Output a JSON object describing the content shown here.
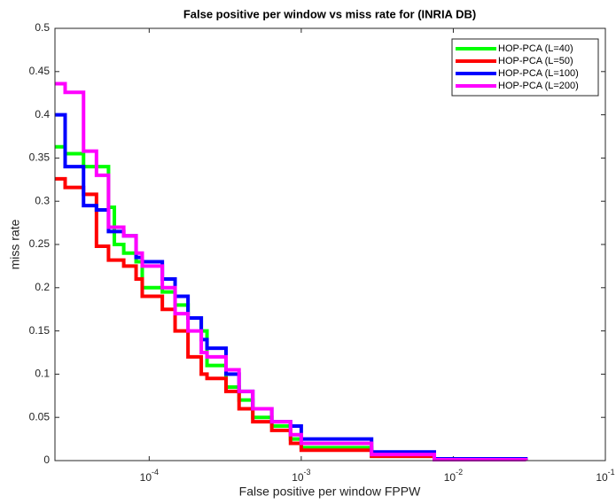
{
  "chart_data": {
    "type": "line",
    "title": "False positive per window vs miss rate for (INRIA DB)",
    "x_label": "False positive per window FPPW",
    "y_label": "miss rate",
    "x_scale": "log",
    "line_style": "step",
    "legend_position": "upper right",
    "x": [
      2.4e-05,
      2.8e-05,
      3.7e-05,
      4.5e-05,
      5.4e-05,
      5.9e-05,
      6.8e-05,
      8.2e-05,
      9e-05,
      0.000122,
      0.000148,
      0.00018,
      0.00022,
      0.00024,
      0.00032,
      0.00039,
      0.00048,
      0.00064,
      0.00085,
      0.001,
      0.0029,
      0.0075,
      0.03
    ],
    "series": [
      {
        "name": "HOP-PCA (L=40)",
        "color": "#00ff00",
        "values": [
          0.363,
          0.355,
          0.34,
          0.34,
          0.293,
          0.25,
          0.24,
          0.23,
          0.2,
          0.195,
          0.18,
          0.165,
          0.15,
          0.11,
          0.085,
          0.07,
          0.05,
          0.04,
          0.025,
          0.015,
          0.005,
          0.001,
          0
        ]
      },
      {
        "name": "HOP-PCA (L=50)",
        "color": "#ff0000",
        "values": [
          0.326,
          0.316,
          0.308,
          0.248,
          0.232,
          0.232,
          0.225,
          0.21,
          0.19,
          0.175,
          0.15,
          0.12,
          0.1,
          0.095,
          0.08,
          0.06,
          0.045,
          0.035,
          0.02,
          0.012,
          0.005,
          0.001,
          0
        ]
      },
      {
        "name": "HOP-PCA (L=100)",
        "color": "#0000ff",
        "values": [
          0.4,
          0.34,
          0.295,
          0.29,
          0.265,
          0.265,
          0.26,
          0.235,
          0.23,
          0.21,
          0.19,
          0.165,
          0.14,
          0.13,
          0.1,
          0.08,
          0.06,
          0.045,
          0.04,
          0.025,
          0.01,
          0.002,
          0
        ]
      },
      {
        "name": "HOP-PCA (L=200)",
        "color": "#ff00ff",
        "values": [
          0.436,
          0.426,
          0.358,
          0.33,
          0.27,
          0.27,
          0.26,
          0.24,
          0.225,
          0.2,
          0.17,
          0.15,
          0.125,
          0.12,
          0.105,
          0.08,
          0.06,
          0.045,
          0.03,
          0.02,
          0.007,
          0.001,
          0
        ]
      }
    ],
    "xlim": [
      2.4e-05,
      0.1
    ],
    "xticks": [
      {
        "value": 0.0001,
        "label": "10^-4"
      },
      {
        "value": 0.001,
        "label": "10^-3"
      },
      {
        "value": 0.01,
        "label": "10^-2"
      },
      {
        "value": 0.1,
        "label": "10^-1"
      }
    ],
    "ylim": [
      0,
      0.5
    ],
    "yticks": [
      0,
      0.05,
      0.1,
      0.15,
      0.2,
      0.25,
      0.3,
      0.35,
      0.4,
      0.45,
      0.5
    ],
    "grid": false
  }
}
